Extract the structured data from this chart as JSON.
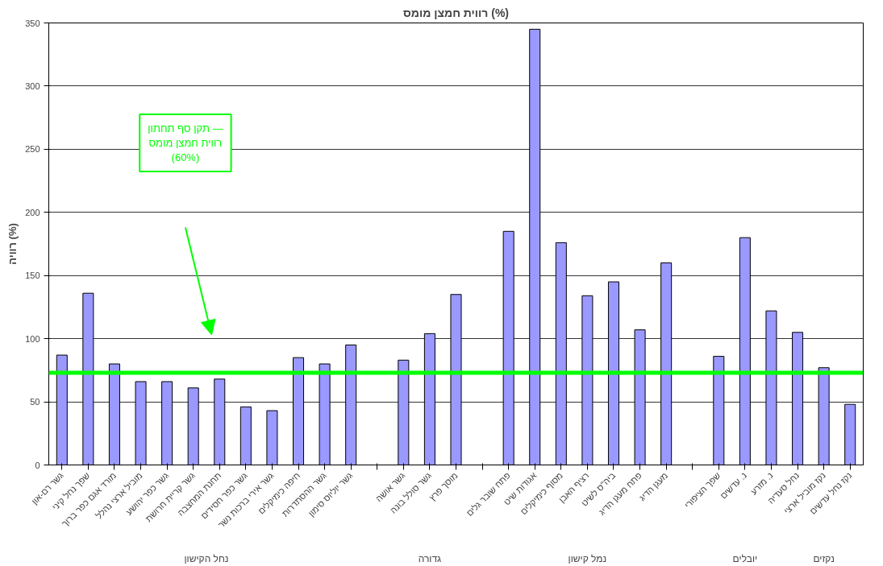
{
  "chart_data": {
    "type": "bar",
    "title": "רווית חמצן מומס (%)",
    "ylabel": "רוויה (%)",
    "categories": [
      "גשר רם-און",
      "שפך נחל קיני",
      "מורד אגם כפר ברוך",
      "מוביל ארצי נהלל",
      "גשר כפר יהושע",
      "גשר קריית חרושת",
      "תחנת המחצבה",
      "גשר כפר חסידים",
      "גשר אירי ברכות נשר",
      "חיפה כימיקלים",
      "גשר ההסתדרות",
      "גשר יוליוס סימון",
      null,
      "גשר אושה",
      "גשר סולל בונה",
      "מוסך פרץ",
      null,
      "פתח שובר גלים",
      "אגודות שיט",
      "מסוף כימיקלים",
      "רציף האבן",
      "ביה\"ס לשיט",
      "פתח מעגן הדיג",
      "מעגן הדיג",
      null,
      "שפך הציפורי",
      "נ. עדשים",
      "נ. מזרע",
      "נחל סעדיה",
      "נקז מוביל ארצי",
      "נקז נחל עדשים"
    ],
    "values": [
      87,
      136,
      80,
      66,
      66,
      61,
      68,
      46,
      43,
      85,
      80,
      95,
      null,
      83,
      104,
      135,
      null,
      185,
      345,
      176,
      134,
      145,
      107,
      160,
      null,
      86,
      180,
      122,
      105,
      77,
      48
    ],
    "color": "#9999ff",
    "ylim": [
      0,
      350
    ],
    "yticks": [
      0,
      50,
      100,
      150,
      200,
      250,
      300,
      350
    ],
    "grid": "y",
    "ref_lines": [
      {
        "axis": "y",
        "value": 73,
        "label": "תקן סף תחתון —\nרווית חמצן מומס\n(60%)",
        "color": "#00ff00"
      }
    ],
    "annotations": [
      "נחל הקישון",
      "גדורה",
      "נמל קישון",
      "יובלים",
      "נקזים"
    ]
  }
}
